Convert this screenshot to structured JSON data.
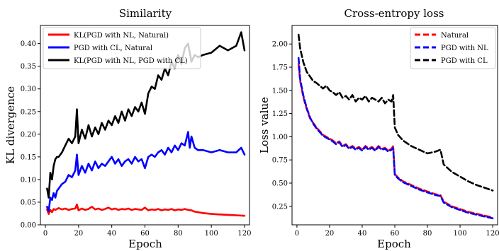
{
  "chart_data": [
    {
      "type": "line",
      "title": "Similarity",
      "xlabel": "Epoch",
      "ylabel": "KL divergence",
      "xlim": [
        -3,
        123
      ],
      "ylim": [
        0.0,
        0.44
      ],
      "xticks": [
        0,
        20,
        40,
        60,
        80,
        100,
        120
      ],
      "yticks": [
        0.0,
        0.05,
        0.1,
        0.15,
        0.2,
        0.25,
        0.3,
        0.35,
        0.4
      ],
      "ytick_labels": [
        "0.00",
        "0.05",
        "0.10",
        "0.15",
        "0.20",
        "0.25",
        "0.30",
        "0.35",
        "0.40"
      ],
      "grid": false,
      "legend": "top-left",
      "series": [
        {
          "name": "KL(PGD with NL, Natural)",
          "color": "#ff0000",
          "dash": "solid",
          "x": [
            1,
            2,
            3,
            4,
            5,
            6,
            8,
            10,
            12,
            14,
            16,
            18,
            19,
            20,
            22,
            24,
            26,
            28,
            30,
            32,
            34,
            36,
            38,
            40,
            42,
            44,
            46,
            48,
            50,
            52,
            54,
            56,
            58,
            60,
            62,
            64,
            66,
            68,
            70,
            72,
            74,
            76,
            78,
            80,
            82,
            84,
            86,
            88,
            90,
            95,
            100,
            105,
            110,
            115,
            120
          ],
          "y": [
            0.034,
            0.024,
            0.033,
            0.028,
            0.035,
            0.033,
            0.037,
            0.034,
            0.036,
            0.033,
            0.035,
            0.036,
            0.045,
            0.032,
            0.036,
            0.033,
            0.035,
            0.04,
            0.034,
            0.036,
            0.033,
            0.035,
            0.038,
            0.034,
            0.036,
            0.033,
            0.035,
            0.034,
            0.036,
            0.033,
            0.035,
            0.034,
            0.033,
            0.038,
            0.032,
            0.034,
            0.033,
            0.035,
            0.032,
            0.034,
            0.033,
            0.035,
            0.032,
            0.034,
            0.033,
            0.035,
            0.033,
            0.032,
            0.029,
            0.026,
            0.024,
            0.023,
            0.022,
            0.021,
            0.02
          ]
        },
        {
          "name": "PGD with CL, Natural",
          "color": "#0000ff",
          "dash": "solid",
          "x": [
            1,
            2,
            3,
            4,
            5,
            6,
            7,
            8,
            10,
            12,
            14,
            16,
            18,
            19,
            20,
            22,
            24,
            26,
            28,
            30,
            32,
            34,
            36,
            38,
            40,
            42,
            44,
            46,
            48,
            50,
            52,
            54,
            56,
            58,
            60,
            62,
            64,
            66,
            68,
            70,
            72,
            74,
            76,
            78,
            80,
            82,
            84,
            86,
            87,
            88,
            90,
            92,
            95,
            100,
            105,
            110,
            115,
            118,
            120
          ],
          "y": [
            0.04,
            0.03,
            0.06,
            0.055,
            0.07,
            0.06,
            0.075,
            0.08,
            0.09,
            0.095,
            0.11,
            0.105,
            0.12,
            0.155,
            0.11,
            0.13,
            0.115,
            0.135,
            0.12,
            0.14,
            0.125,
            0.135,
            0.13,
            0.14,
            0.15,
            0.135,
            0.145,
            0.13,
            0.14,
            0.145,
            0.135,
            0.15,
            0.14,
            0.145,
            0.125,
            0.15,
            0.155,
            0.15,
            0.16,
            0.165,
            0.155,
            0.17,
            0.16,
            0.175,
            0.165,
            0.18,
            0.175,
            0.205,
            0.17,
            0.195,
            0.17,
            0.165,
            0.165,
            0.16,
            0.165,
            0.16,
            0.16,
            0.17,
            0.155
          ]
        },
        {
          "name": "KL(PGD with NL, PGD with CL)",
          "color": "#000000",
          "dash": "solid",
          "x": [
            1,
            2,
            3,
            4,
            5,
            6,
            7,
            8,
            10,
            12,
            14,
            16,
            18,
            19,
            20,
            22,
            24,
            26,
            28,
            30,
            32,
            34,
            36,
            38,
            40,
            42,
            44,
            46,
            48,
            50,
            52,
            54,
            56,
            58,
            60,
            62,
            64,
            66,
            68,
            70,
            72,
            74,
            76,
            78,
            80,
            82,
            84,
            86,
            88,
            90,
            92,
            95,
            100,
            105,
            110,
            115,
            118,
            120
          ],
          "y": [
            0.08,
            0.06,
            0.115,
            0.1,
            0.13,
            0.145,
            0.15,
            0.15,
            0.16,
            0.175,
            0.19,
            0.18,
            0.195,
            0.255,
            0.18,
            0.21,
            0.19,
            0.22,
            0.195,
            0.215,
            0.2,
            0.225,
            0.21,
            0.23,
            0.22,
            0.24,
            0.225,
            0.25,
            0.23,
            0.255,
            0.24,
            0.26,
            0.25,
            0.27,
            0.245,
            0.29,
            0.305,
            0.3,
            0.33,
            0.32,
            0.345,
            0.33,
            0.36,
            0.345,
            0.375,
            0.355,
            0.39,
            0.4,
            0.36,
            0.375,
            0.37,
            0.375,
            0.38,
            0.395,
            0.385,
            0.395,
            0.425,
            0.385
          ]
        }
      ]
    },
    {
      "type": "line",
      "title": "Cross-entropy loss",
      "xlabel": "Epoch",
      "ylabel": "Loss value",
      "xlim": [
        -3,
        123
      ],
      "ylim": [
        0.05,
        2.2
      ],
      "xticks": [
        0,
        20,
        40,
        60,
        80,
        100,
        120
      ],
      "yticks": [
        0.25,
        0.5,
        0.75,
        1.0,
        1.25,
        1.5,
        1.75,
        2.0
      ],
      "ytick_labels": [
        "0.25",
        "0.50",
        "0.75",
        "1.00",
        "1.25",
        "1.50",
        "1.75",
        "2.00"
      ],
      "grid": false,
      "legend": "top-right",
      "series": [
        {
          "name": "Natural",
          "color": "#ff0000",
          "dash": "dashed",
          "x": [
            1,
            2,
            4,
            6,
            8,
            10,
            12,
            14,
            16,
            18,
            20,
            22,
            24,
            26,
            28,
            30,
            32,
            34,
            36,
            38,
            40,
            42,
            44,
            46,
            48,
            50,
            52,
            54,
            56,
            58,
            59,
            60,
            62,
            65,
            70,
            75,
            80,
            85,
            88,
            90,
            95,
            100,
            105,
            110,
            115,
            120
          ],
          "y": [
            1.78,
            1.6,
            1.42,
            1.3,
            1.2,
            1.15,
            1.1,
            1.06,
            1.02,
            1.0,
            0.98,
            0.96,
            0.93,
            0.95,
            0.9,
            0.92,
            0.88,
            0.9,
            0.87,
            0.89,
            0.86,
            0.9,
            0.87,
            0.89,
            0.86,
            0.9,
            0.87,
            0.88,
            0.85,
            0.87,
            0.9,
            0.6,
            0.56,
            0.52,
            0.48,
            0.44,
            0.41,
            0.38,
            0.37,
            0.3,
            0.25,
            0.22,
            0.19,
            0.17,
            0.15,
            0.13
          ]
        },
        {
          "name": "PGD with NL",
          "color": "#0000ff",
          "dash": "dashed",
          "x": [
            1,
            2,
            4,
            6,
            8,
            10,
            12,
            14,
            16,
            18,
            20,
            22,
            24,
            26,
            28,
            30,
            32,
            34,
            36,
            38,
            40,
            42,
            44,
            46,
            48,
            50,
            52,
            54,
            56,
            58,
            59,
            60,
            62,
            65,
            70,
            75,
            80,
            85,
            88,
            90,
            95,
            100,
            105,
            110,
            115,
            120
          ],
          "y": [
            1.85,
            1.62,
            1.44,
            1.31,
            1.21,
            1.14,
            1.09,
            1.05,
            1.01,
            0.99,
            0.97,
            0.95,
            0.92,
            0.94,
            0.89,
            0.91,
            0.87,
            0.89,
            0.86,
            0.88,
            0.85,
            0.89,
            0.86,
            0.88,
            0.85,
            0.89,
            0.86,
            0.87,
            0.84,
            0.86,
            0.88,
            0.59,
            0.55,
            0.51,
            0.47,
            0.43,
            0.4,
            0.37,
            0.36,
            0.29,
            0.24,
            0.21,
            0.18,
            0.16,
            0.14,
            0.12
          ]
        },
        {
          "name": "PGD with CL",
          "color": "#000000",
          "dash": "dashed",
          "x": [
            1,
            2,
            4,
            6,
            8,
            10,
            12,
            14,
            16,
            18,
            20,
            22,
            24,
            26,
            28,
            30,
            32,
            34,
            36,
            38,
            40,
            42,
            44,
            46,
            48,
            50,
            52,
            54,
            56,
            58,
            59,
            60,
            62,
            65,
            70,
            75,
            80,
            85,
            88,
            90,
            95,
            100,
            105,
            110,
            115,
            120
          ],
          "y": [
            2.1,
            1.95,
            1.8,
            1.7,
            1.65,
            1.6,
            1.58,
            1.55,
            1.52,
            1.55,
            1.5,
            1.48,
            1.45,
            1.48,
            1.42,
            1.44,
            1.4,
            1.45,
            1.38,
            1.42,
            1.4,
            1.44,
            1.38,
            1.42,
            1.4,
            1.38,
            1.42,
            1.36,
            1.4,
            1.38,
            1.45,
            1.1,
            1.02,
            0.96,
            0.9,
            0.86,
            0.82,
            0.84,
            0.86,
            0.7,
            0.62,
            0.57,
            0.52,
            0.48,
            0.45,
            0.42
          ]
        }
      ]
    }
  ]
}
